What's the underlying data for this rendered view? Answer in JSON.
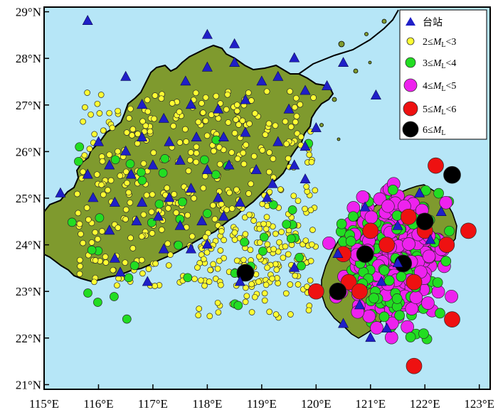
{
  "colors": {
    "sea": "#b6e6f7",
    "land": "#7f9a2e",
    "station": "#1f1fc8",
    "m2": "#ffff33",
    "m3": "#22dd22",
    "m4": "#ee22ee",
    "m5": "#ee1111",
    "m6": "#000000"
  },
  "axes": {
    "y_labels": [
      "29°N",
      "28°N",
      "27°N",
      "26°N",
      "25°N",
      "24°N",
      "23°N",
      "22°N",
      "21°N"
    ],
    "x_labels": [
      "115°E",
      "116°E",
      "117°E",
      "118°E",
      "119°E",
      "120°E",
      "121°E",
      "122°E",
      "123°E"
    ]
  },
  "legend": {
    "station": "台站",
    "m2_pre": "2≤",
    "m2_m": "M",
    "m2_sub": "L",
    "m2_post": "<3",
    "m3_pre": "3≤",
    "m3_m": "M",
    "m3_sub": "L",
    "m3_post": "<4",
    "m4_pre": "4≤",
    "m4_m": "M",
    "m4_sub": "L",
    "m4_post": "<5",
    "m5_pre": "5≤",
    "m5_m": "M",
    "m5_sub": "L",
    "m5_post": "<6",
    "m6_pre": "6≤",
    "m6_m": "M",
    "m6_sub": "L"
  },
  "map_data": {
    "lon_range": [
      115,
      123.2
    ],
    "lat_range": [
      20.9,
      29.1
    ],
    "stations": [
      [
        115.8,
        28.8
      ],
      [
        118.0,
        28.5
      ],
      [
        118.5,
        28.3
      ],
      [
        119.6,
        28.0
      ],
      [
        116.5,
        27.6
      ],
      [
        117.6,
        27.5
      ],
      [
        118.0,
        27.8
      ],
      [
        118.5,
        27.9
      ],
      [
        119.0,
        27.5
      ],
      [
        119.3,
        27.6
      ],
      [
        119.8,
        27.3
      ],
      [
        120.2,
        27.4
      ],
      [
        121.1,
        27.2
      ],
      [
        120.5,
        27.9
      ],
      [
        116.8,
        27.0
      ],
      [
        117.2,
        26.7
      ],
      [
        117.7,
        27.0
      ],
      [
        118.2,
        26.9
      ],
      [
        118.7,
        27.1
      ],
      [
        119.5,
        26.9
      ],
      [
        120.0,
        26.5
      ],
      [
        116.0,
        26.2
      ],
      [
        116.5,
        26.0
      ],
      [
        116.8,
        26.3
      ],
      [
        117.3,
        26.2
      ],
      [
        117.8,
        26.3
      ],
      [
        118.3,
        26.3
      ],
      [
        118.7,
        26.4
      ],
      [
        119.3,
        26.2
      ],
      [
        119.8,
        26.1
      ],
      [
        115.8,
        25.5
      ],
      [
        116.2,
        25.7
      ],
      [
        116.6,
        25.5
      ],
      [
        117.0,
        25.7
      ],
      [
        117.5,
        25.8
      ],
      [
        118.0,
        25.6
      ],
      [
        118.4,
        25.7
      ],
      [
        118.9,
        25.6
      ],
      [
        119.2,
        25.3
      ],
      [
        119.6,
        25.7
      ],
      [
        115.3,
        25.1
      ],
      [
        115.9,
        25.0
      ],
      [
        116.3,
        24.9
      ],
      [
        116.8,
        24.9
      ],
      [
        117.3,
        25.0
      ],
      [
        117.7,
        25.2
      ],
      [
        118.2,
        25.0
      ],
      [
        118.6,
        24.9
      ],
      [
        119.1,
        25.0
      ],
      [
        116.2,
        24.3
      ],
      [
        116.7,
        24.5
      ],
      [
        117.1,
        24.6
      ],
      [
        117.5,
        24.4
      ],
      [
        117.9,
        24.5
      ],
      [
        118.3,
        24.6
      ],
      [
        117.2,
        23.9
      ],
      [
        117.7,
        23.9
      ],
      [
        118.0,
        24.0
      ],
      [
        116.3,
        23.7
      ],
      [
        116.4,
        23.4
      ],
      [
        116.9,
        23.2
      ],
      [
        118.6,
        23.2
      ],
      [
        119.6,
        23.5
      ],
      [
        120.9,
        24.8
      ],
      [
        121.5,
        24.4
      ],
      [
        121.9,
        25.1
      ],
      [
        122.3,
        24.7
      ],
      [
        122.1,
        24.1
      ],
      [
        121.5,
        23.6
      ],
      [
        121.2,
        23.2
      ],
      [
        120.8,
        22.7
      ],
      [
        120.5,
        22.3
      ],
      [
        121.3,
        22.2
      ],
      [
        120.4,
        23.8
      ],
      [
        121.0,
        22.0
      ],
      [
        119.8,
        25.4
      ]
    ]
  }
}
